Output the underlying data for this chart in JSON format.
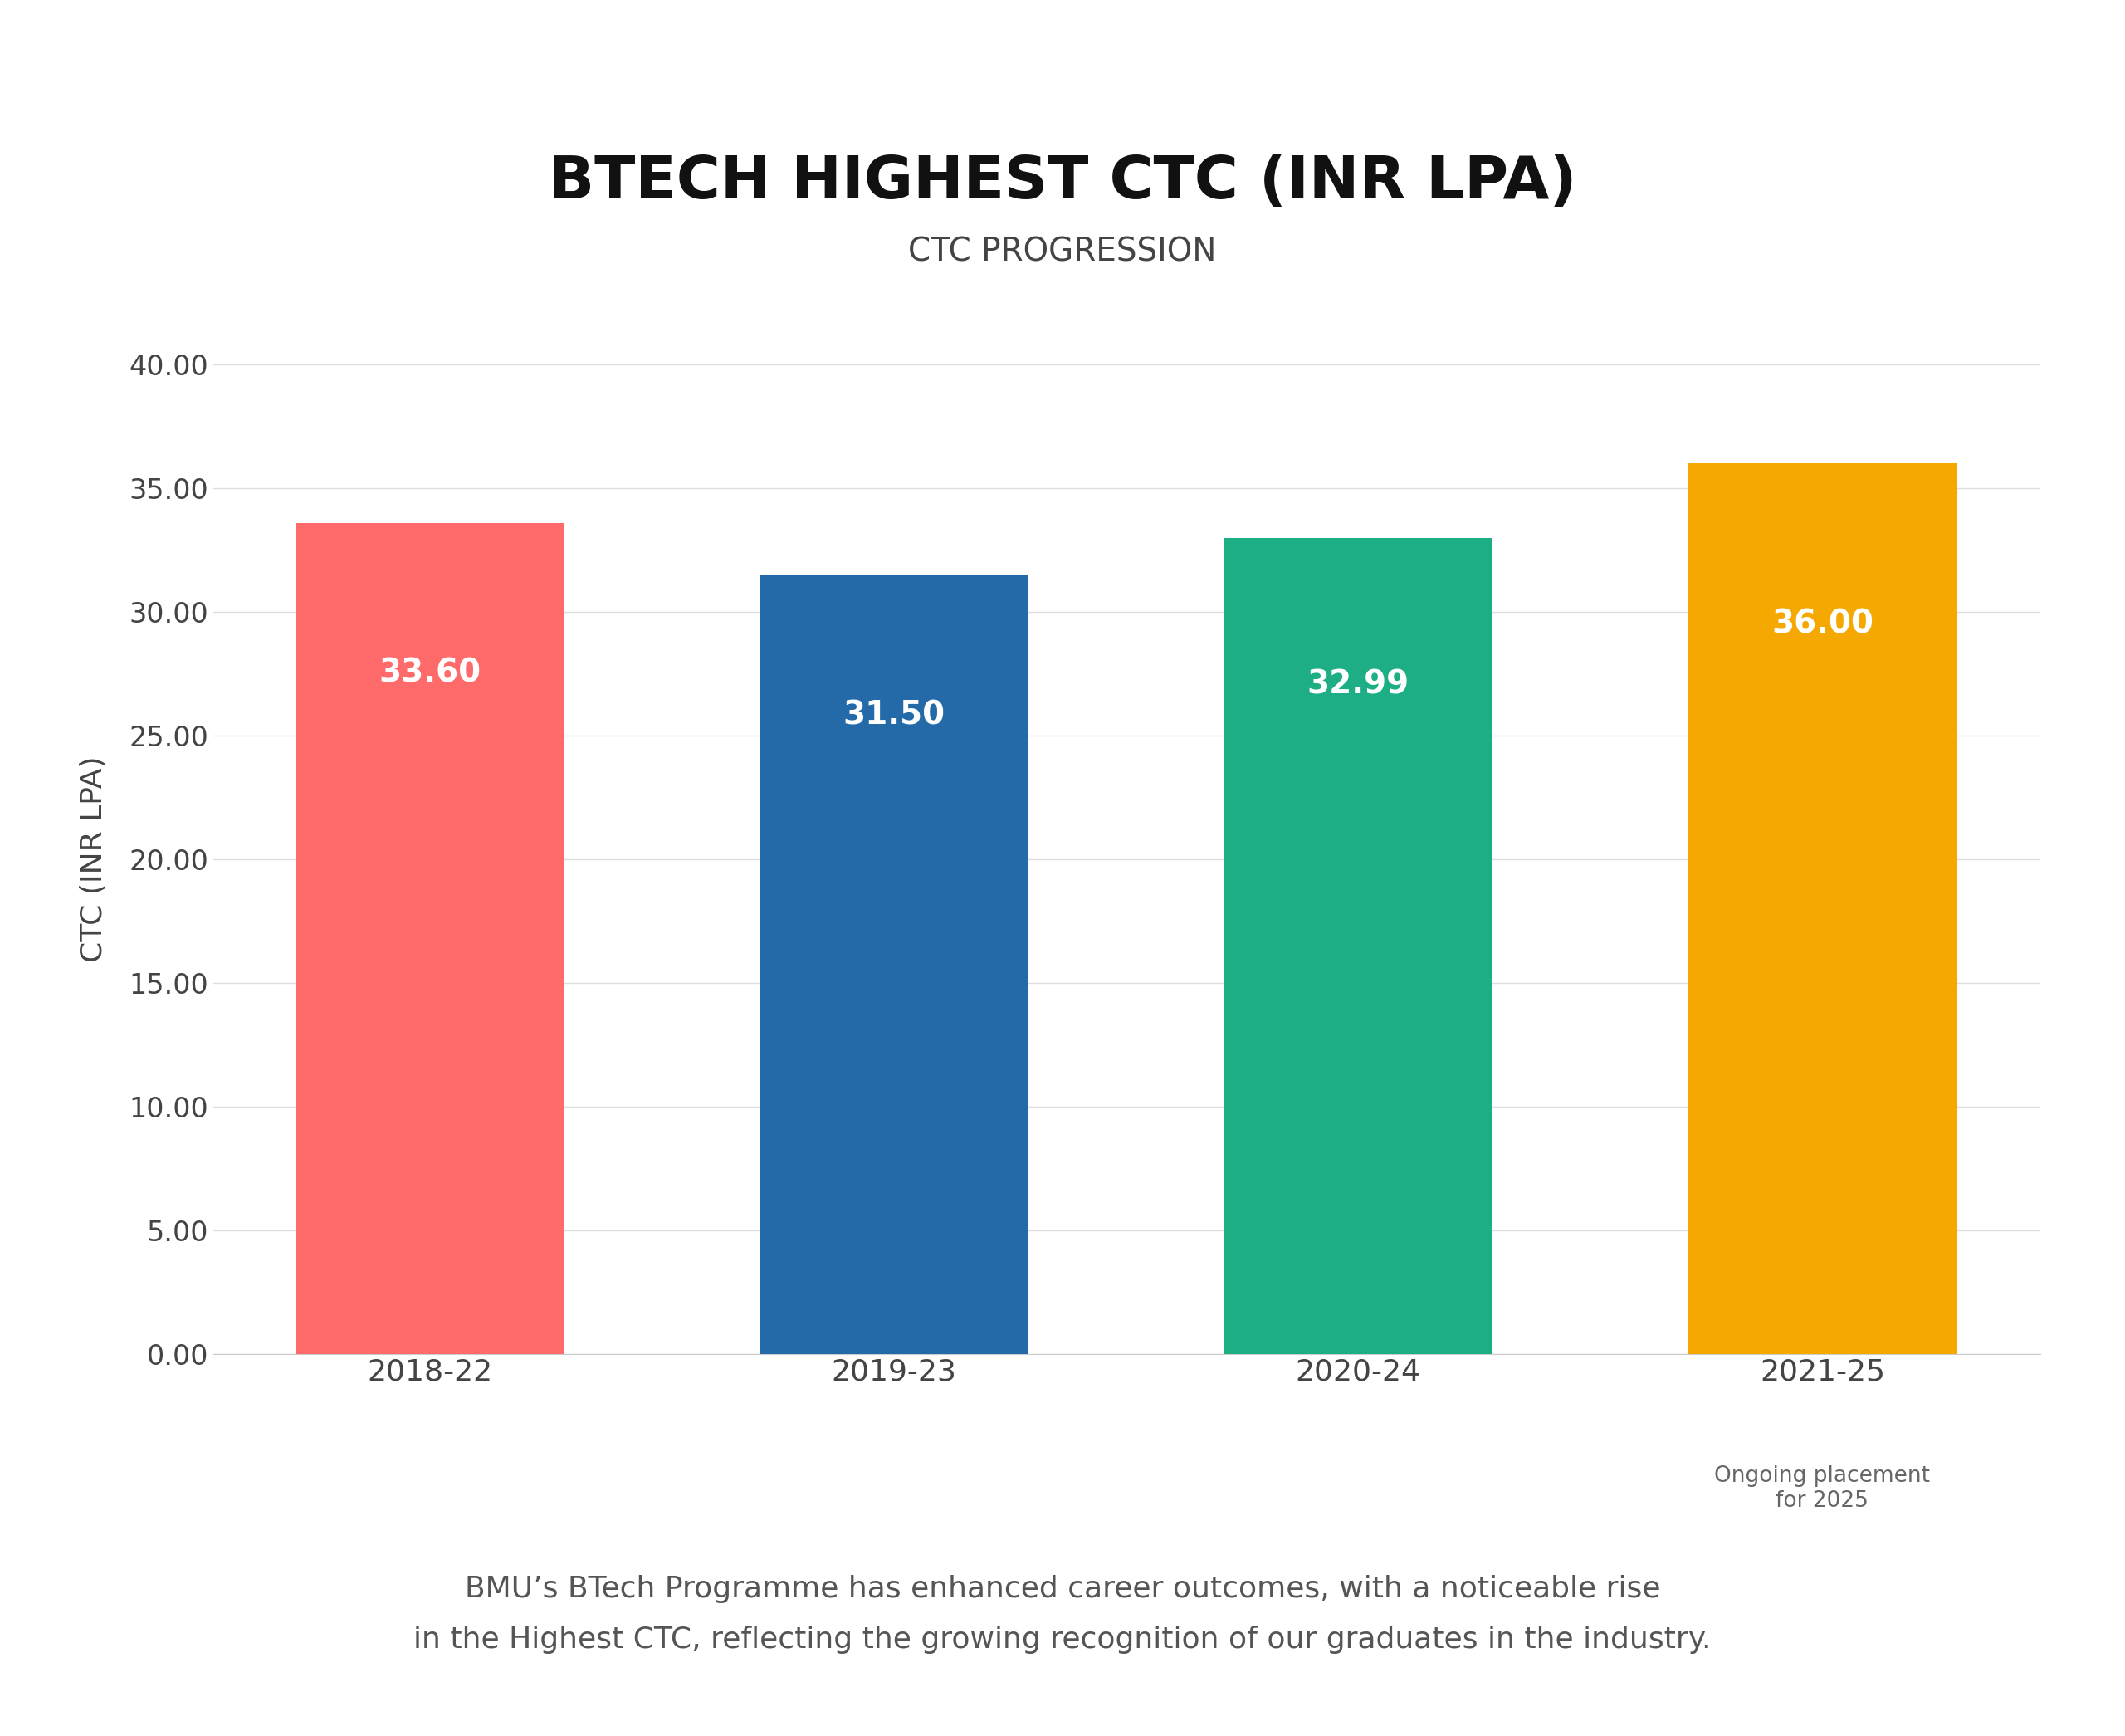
{
  "title": "BTECH HIGHEST CTC (INR LPA)",
  "subtitle": "CTC PROGRESSION",
  "ylabel": "CTC (INR LPA)",
  "categories": [
    "2018-22",
    "2019-23",
    "2020-24",
    "2021-25"
  ],
  "values": [
    33.6,
    31.5,
    32.99,
    36.0
  ],
  "bar_colors": [
    "#FF6B6B",
    "#2469A8",
    "#1EAE85",
    "#F5A800"
  ],
  "ylim": [
    0,
    40
  ],
  "yticks": [
    0.0,
    5.0,
    10.0,
    15.0,
    20.0,
    25.0,
    30.0,
    35.0,
    40.0
  ],
  "background_color": "#FFFFFF",
  "label_color": "#FFFFFF",
  "annotation_note": "Ongoing placement\nfor 2025",
  "footer_text": "BMU’s BTech Programme has enhanced career outcomes, with a noticeable rise\nin the Highest CTC, reflecting the growing recognition of our graduates in the industry.",
  "title_fontsize": 52,
  "subtitle_fontsize": 28,
  "ylabel_fontsize": 26,
  "tick_fontsize": 24,
  "bar_label_fontsize": 28,
  "footer_fontsize": 26,
  "note_fontsize": 19,
  "xlabel_fontsize": 26
}
